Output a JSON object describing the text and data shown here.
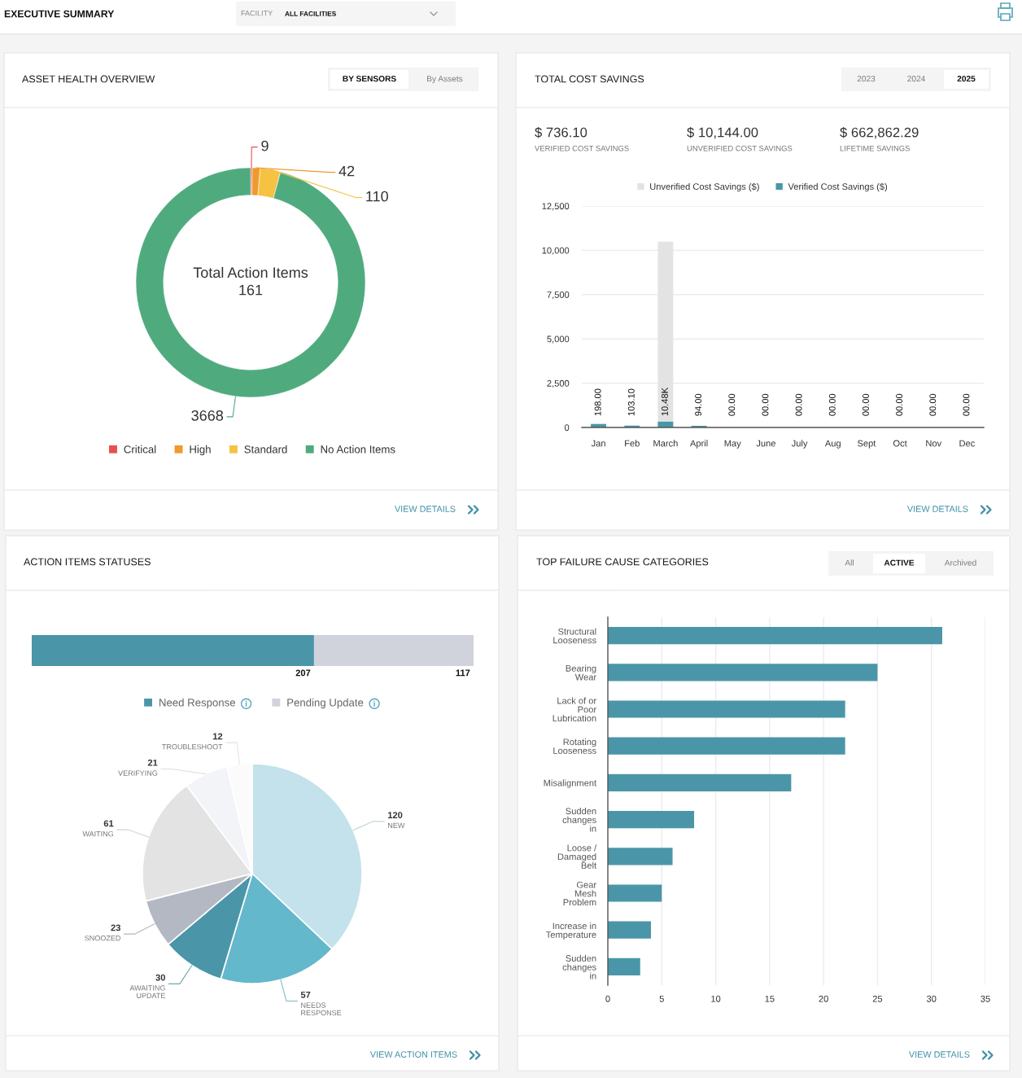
{
  "chart_data": [
    {
      "type": "other",
      "title": "EXECUTIVE SUMMARY",
      "annotations": [
        "FACILITY",
        "ALL FACILITIES"
      ]
    },
    {
      "type": "donut",
      "title": "ASSET HEALTH OVERVIEW",
      "categories": [
        "Critical",
        "High",
        "Standard",
        "No Action Items"
      ],
      "values": [
        9,
        42,
        110,
        3668
      ],
      "colors": [
        "#e84f4f",
        "#f0992e",
        "#f5c242",
        "#4fab7e"
      ],
      "data_labels": true,
      "legend": "bottom",
      "annotations": [
        "Total Action Items\n161",
        "BY SENSORS",
        "By Assets",
        "VIEW DETAILS"
      ]
    },
    {
      "type": "bar",
      "stacked": true,
      "title": "TOTAL COST SAVINGS",
      "categories": [
        "Jan",
        "Feb",
        "March",
        "April",
        "May",
        "June",
        "July",
        "Aug",
        "Sept",
        "Oct",
        "Nov",
        "Dec"
      ],
      "series": [
        {
          "name": "Verified Cost Savings ($)",
          "color": "#4a96a8",
          "values": [
            198,
            103.1,
            341,
            94,
            0,
            0,
            0,
            0,
            0,
            0,
            0,
            0
          ]
        },
        {
          "name": "Unverified Cost Savings ($)",
          "color": "#e3e3e3",
          "values": [
            0,
            0,
            10144,
            0,
            0,
            0,
            0,
            0,
            0,
            0,
            0,
            0
          ]
        }
      ],
      "ylim": [
        0,
        12500
      ],
      "yticks": [
        0,
        {
          "value": 2500,
          "label": "2,500"
        },
        {
          "value": 5000,
          "label": "5,000"
        },
        {
          "value": 7500,
          "label": "7,500"
        },
        {
          "value": 10000,
          "label": "10,000"
        },
        {
          "value": 12500,
          "label": "12,500"
        }
      ],
      "grid": "y",
      "legend": "top",
      "totals": [
        "198.00",
        "103.10",
        "10.48K",
        "94.00",
        "00.00",
        "00.00",
        "00.00",
        "00.00",
        "00.00",
        "00.00",
        "00.00",
        "00.00"
      ],
      "annotations": [
        "$ 736.10",
        "VERIFIED COST SAVINGS",
        "$ 10,144.00",
        "UNVERIFIED COST SAVINGS",
        "$ 662,862.29",
        "LIFETIME SAVINGS",
        "2023",
        "2024",
        "2025",
        "VIEW DETAILS"
      ]
    },
    {
      "type": "bar",
      "orientation": "horizontal",
      "stacked": true,
      "title": "ACTION ITEMS STATUSES",
      "categories": [
        null
      ],
      "series": [
        {
          "name": "Need Response",
          "color": "#4a96a8",
          "values": [
            207
          ]
        },
        {
          "name": "Pending Update",
          "color": "#d0d3dc",
          "values": [
            117
          ]
        }
      ],
      "xlim": [
        0,
        324
      ],
      "data_labels": true,
      "legend": "bottom",
      "tick_labels": false
    },
    {
      "type": "pie",
      "categories": [
        "NEW",
        "NEEDS\nRESPONSE",
        "AWAITING\nUPDATE",
        "SNOOZED",
        "WAITING",
        "VERIFYING",
        "TROUBLESHOOT"
      ],
      "values": [
        120,
        57,
        30,
        23,
        61,
        21,
        12
      ],
      "colors": [
        "#c3e2eb",
        "#64b8cc",
        "#4a96a8",
        "#b4b8c3",
        "#e3e3e3",
        "#f2f4f8",
        "#fbfbfb"
      ],
      "data_labels": true,
      "annotations": [
        "VIEW ACTION ITEMS"
      ]
    },
    {
      "type": "bar",
      "orientation": "horizontal",
      "title": "TOP FAILURE CAUSE CATEGORIES",
      "categories": [
        "Structural\nLooseness",
        "Bearing\nWear",
        "Lack of or\nPoor\nLubrication",
        "Rotating\nLooseness",
        "Misalignment",
        "Sudden\nchanges\nin",
        "Loose /\nDamaged\nBelt",
        "Gear\nMesh\nProblem",
        "Increase in\nTemperature",
        "Sudden\nchanges\nin"
      ],
      "values": [
        31,
        25,
        22,
        22,
        17,
        8,
        6,
        5,
        4,
        3
      ],
      "color": "#4a96a8",
      "xlim": [
        0,
        35
      ],
      "xticks": [
        0,
        5,
        10,
        15,
        20,
        25,
        30,
        35
      ],
      "grid": "x",
      "annotations": [
        "All",
        "ACTIVE",
        "Archived",
        "VIEW DETAILS"
      ]
    }
  ]
}
